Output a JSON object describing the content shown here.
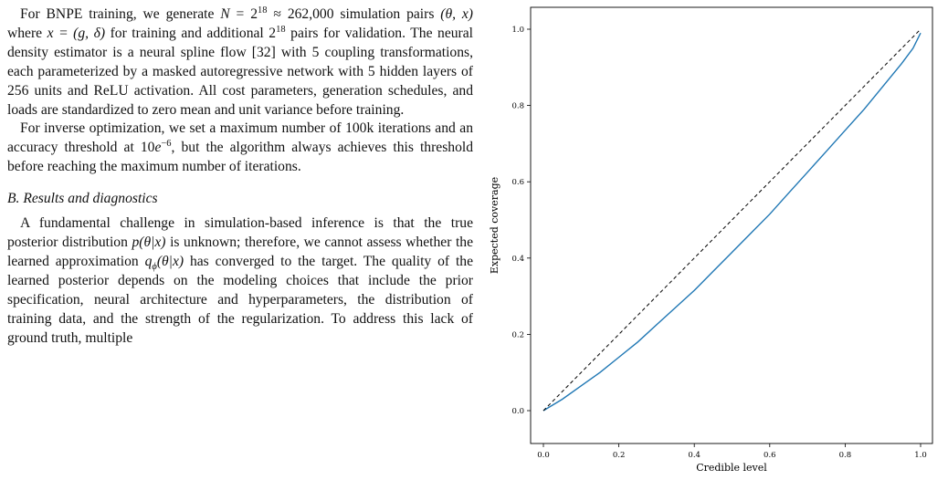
{
  "text": {
    "para1": {
      "t1": "For BNPE training, we generate ",
      "N": "N",
      "eq": " = 2",
      "exp18a": "18",
      "approx": " ≈ 262,000",
      "t2": " simulation pairs ",
      "theta_x": "(θ, x)",
      "t3": " where ",
      "x_def": "x = (g, δ)",
      "t4": " for training and additional 2",
      "exp18b": "18",
      "t5": " pairs for validation. The neural density estimator is a neural spline flow [32] with 5 coupling transformations, each parameterized by a masked autoregressive network with 5 hidden layers of 256 units and ReLU activation. All cost parameters, generation schedules, and loads are standardized to zero mean and unit variance before training."
    },
    "para2": {
      "t1": "For inverse optimization, we set a maximum number of 100k iterations and an accuracy threshold at 10",
      "e": "e",
      "exp": "−6",
      "t2": ", but the algorithm always achieves this threshold before reaching the maximum number of iterations."
    },
    "heading": "B.  Results and diagnostics",
    "para3": {
      "t1": "A fundamental challenge in simulation-based inference is that the true posterior distribution ",
      "p": "p(θ|x)",
      "t2": " is unknown; therefore, we cannot assess whether the learned approximation ",
      "q": "q",
      "phi": "ϕ",
      "q2": "(θ|x)",
      "t3": " has converged to the target. The quality of the learned posterior depends on the modeling choices that include the prior specification, neural architecture and hyperparameters, the distribution of training data, and the strength of the regularization. To address this lack of ground truth, multiple"
    }
  },
  "chart_data": {
    "type": "line",
    "xlabel": "Credible level",
    "ylabel": "Expected coverage",
    "xlim": [
      0.0,
      1.0
    ],
    "ylim": [
      0.0,
      1.0
    ],
    "xticks": [
      "0.0",
      "0.2",
      "0.4",
      "0.6",
      "0.8",
      "1.0"
    ],
    "yticks": [
      "0.0",
      "0.2",
      "0.4",
      "0.6",
      "0.8",
      "1.0"
    ],
    "grid": false,
    "series": [
      {
        "style": "solid",
        "color": "#1f77b4",
        "x": [
          0.0,
          0.05,
          0.1,
          0.15,
          0.2,
          0.25,
          0.3,
          0.35,
          0.4,
          0.45,
          0.5,
          0.55,
          0.6,
          0.65,
          0.7,
          0.75,
          0.8,
          0.85,
          0.9,
          0.95,
          0.98,
          1.0
        ],
        "y": [
          0.0,
          0.03,
          0.065,
          0.1,
          0.14,
          0.18,
          0.225,
          0.27,
          0.315,
          0.365,
          0.415,
          0.465,
          0.515,
          0.57,
          0.625,
          0.68,
          0.735,
          0.79,
          0.85,
          0.91,
          0.95,
          0.99
        ]
      },
      {
        "style": "dashed",
        "color": "#000000",
        "x": [
          0.0,
          1.0
        ],
        "y": [
          0.0,
          1.0
        ]
      }
    ]
  }
}
